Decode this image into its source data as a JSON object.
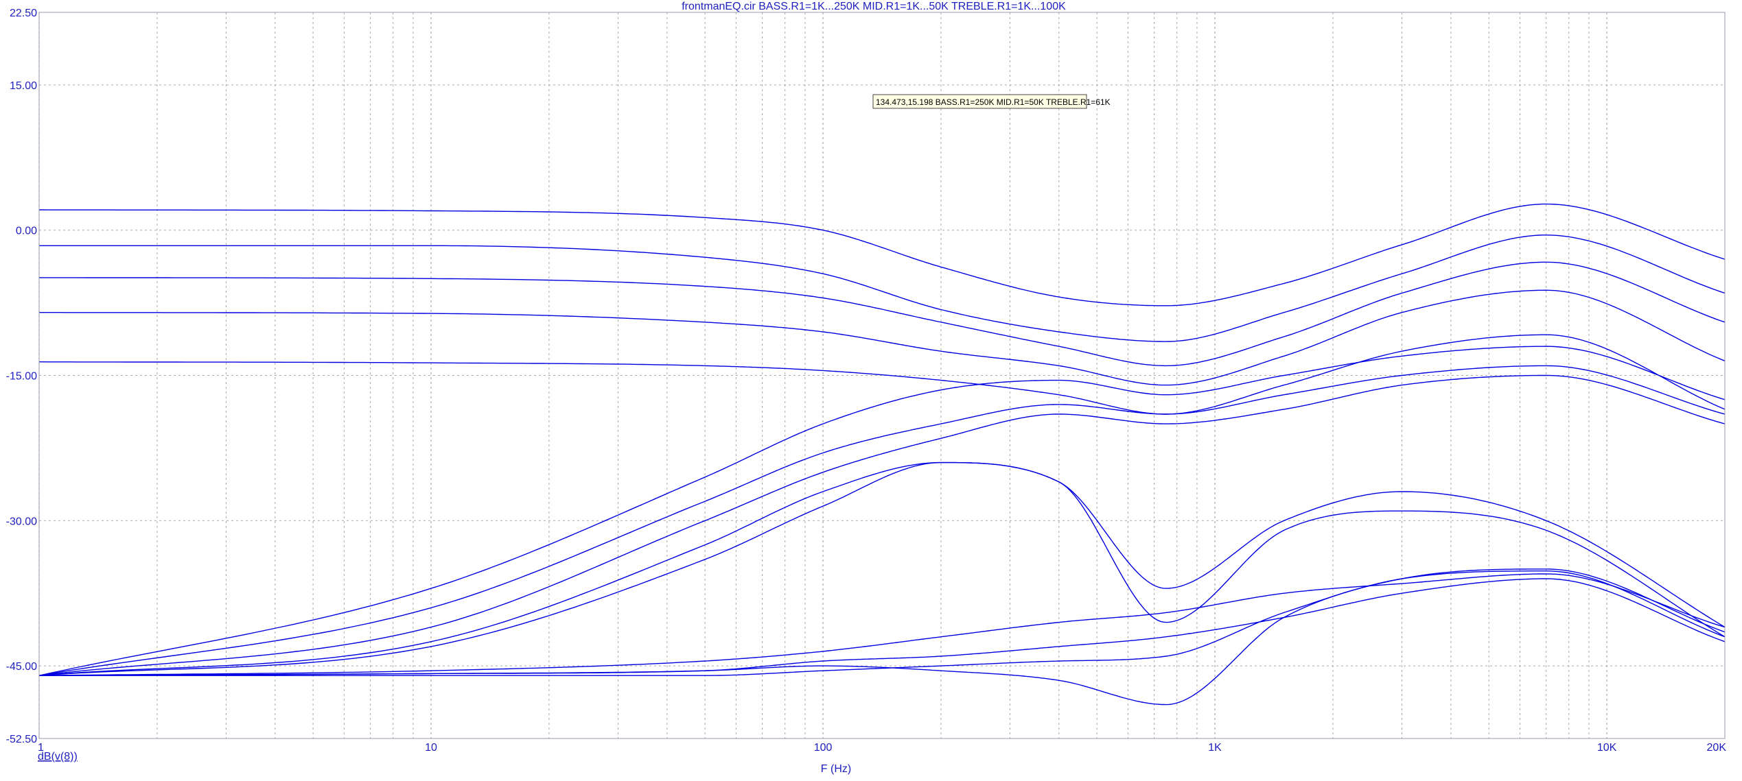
{
  "window": {
    "title": "frontmanEQ.cir BASS.R1=1K...250K MID.R1=1K...50K TREBLE.R1=1K...100K"
  },
  "tooltip": {
    "text": "134.473,15.198 BASS.R1=250K MID.R1=50K TREBLE.R1=61K"
  },
  "colors": {
    "trace": "#0000e0",
    "axis_text": "#2020c0",
    "grid": "#a8a8a8",
    "tooltip_bg": "#ffffe6"
  },
  "chart_data": {
    "type": "line",
    "title": "frontmanEQ.cir BASS.R1=1K...250K MID.R1=1K...50K TREBLE.R1=1K...100K",
    "xlabel": "F (Hz)",
    "ylabel": "dB(v(8))",
    "xscale": "log",
    "xlim": [
      1,
      20000
    ],
    "ylim": [
      -52.5,
      22.5
    ],
    "grid": true,
    "xticks": [
      {
        "value": 1,
        "label": "1"
      },
      {
        "value": 10,
        "label": "10"
      },
      {
        "value": 100,
        "label": "100"
      },
      {
        "value": 1000,
        "label": "1K"
      },
      {
        "value": 10000,
        "label": "10K"
      },
      {
        "value": 20000,
        "label": "20K"
      }
    ],
    "yticks": [
      {
        "value": 22.5,
        "label": "22.50"
      },
      {
        "value": 15,
        "label": "15.00"
      },
      {
        "value": 0,
        "label": "0.00"
      },
      {
        "value": -15,
        "label": "-15.00"
      },
      {
        "value": -30,
        "label": "-30.00"
      },
      {
        "value": -45,
        "label": "-45.00"
      },
      {
        "value": -52.5,
        "label": "-52.50"
      }
    ],
    "x": [
      1,
      10,
      50,
      100,
      200,
      400,
      750,
      1500,
      3000,
      7000,
      20000
    ],
    "series": [
      {
        "values": [
          2.1,
          2.0,
          1.3,
          0.0,
          -3.8,
          -6.9,
          -7.8,
          -5.5,
          -1.5,
          2.7,
          -3.0
        ]
      },
      {
        "values": [
          -1.6,
          -1.6,
          -2.8,
          -4.5,
          -8.2,
          -10.5,
          -11.5,
          -8.5,
          -4.5,
          -0.5,
          -6.5
        ]
      },
      {
        "values": [
          -4.9,
          -5.0,
          -5.8,
          -7.0,
          -9.5,
          -12.0,
          -14.0,
          -11.0,
          -6.5,
          -3.3,
          -9.5
        ]
      },
      {
        "values": [
          -8.5,
          -8.6,
          -9.5,
          -10.5,
          -12.5,
          -14.0,
          -16.0,
          -13.0,
          -8.5,
          -6.2,
          -13.5
        ]
      },
      {
        "values": [
          -13.6,
          -13.7,
          -14.0,
          -14.5,
          -15.5,
          -17.0,
          -19.0,
          -16.0,
          -12.5,
          -10.8,
          -18.5
        ]
      },
      {
        "values": [
          -46.0,
          -37.0,
          -25.5,
          -20.0,
          -16.5,
          -15.5,
          -17.0,
          -15.0,
          -13.0,
          -12.0,
          -17.5
        ]
      },
      {
        "values": [
          -46.0,
          -39.0,
          -28.0,
          -23.0,
          -20.0,
          -18.0,
          -19.0,
          -17.0,
          -15.0,
          -14.0,
          -19.0
        ]
      },
      {
        "values": [
          -46.0,
          -41.0,
          -30.0,
          -25.0,
          -21.5,
          -19.0,
          -20.0,
          -18.5,
          -16.0,
          -15.0,
          -20.0
        ]
      },
      {
        "values": [
          -46.0,
          -42.5,
          -32.5,
          -27.0,
          -24.0,
          -26.0,
          -40.5,
          -31.0,
          -29.0,
          -31.0,
          -42.0
        ]
      },
      {
        "values": [
          -46.0,
          -43.0,
          -34.0,
          -28.5,
          -24.0,
          -26.0,
          -37.0,
          -30.0,
          -27.0,
          -30.0,
          -41.0
        ]
      },
      {
        "values": [
          -46.0,
          -45.5,
          -44.5,
          -43.5,
          -42.0,
          -40.5,
          -39.5,
          -37.5,
          -36.5,
          -35.5,
          -41.0
        ]
      },
      {
        "values": [
          -46.0,
          -45.8,
          -45.5,
          -45.0,
          -45.5,
          -46.5,
          -49.0,
          -40.0,
          -36.0,
          -35.0,
          -41.5
        ]
      },
      {
        "values": [
          -46.0,
          -45.8,
          -45.5,
          -44.5,
          -44.0,
          -43.0,
          -42.0,
          -40.0,
          -37.5,
          -36.0,
          -42.5
        ]
      },
      {
        "values": [
          -46.0,
          -46.0,
          -46.0,
          -45.5,
          -45.0,
          -44.5,
          -44.0,
          -39.5,
          -36.0,
          -35.2,
          -42.0
        ]
      }
    ]
  }
}
